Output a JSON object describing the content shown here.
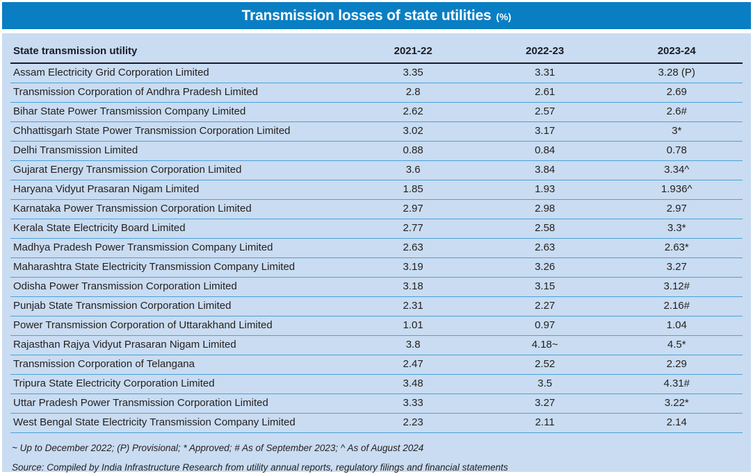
{
  "title": {
    "main": "Transmission losses of state utilities",
    "unit": "(%)"
  },
  "chart_data": {
    "type": "table",
    "title": "Transmission losses of state utilities (%)",
    "columns": [
      "State transmission utility",
      "2021-22",
      "2022-23",
      "2023-24"
    ],
    "rows": [
      [
        "Assam Electricity Grid Corporation Limited",
        "3.35",
        "3.31",
        "3.28 (P)"
      ],
      [
        "Transmission Corporation of Andhra Pradesh Limited",
        "2.8",
        "2.61",
        "2.69"
      ],
      [
        "Bihar State Power Transmission Company Limited",
        "2.62",
        "2.57",
        "2.6#"
      ],
      [
        "Chhattisgarh State Power Transmission Corporation Limited",
        "3.02",
        "3.17",
        "3*"
      ],
      [
        "Delhi Transmission Limited",
        "0.88",
        "0.84",
        "0.78"
      ],
      [
        "Gujarat Energy Transmission Corporation Limited",
        "3.6",
        "3.84",
        "3.34^"
      ],
      [
        "Haryana Vidyut Prasaran Nigam Limited",
        "1.85",
        "1.93",
        "1.936^"
      ],
      [
        "Karnataka Power Transmission Corporation Limited",
        "2.97",
        "2.98",
        "2.97"
      ],
      [
        "Kerala State Electricity Board Limited",
        "2.77",
        "2.58",
        "3.3*"
      ],
      [
        "Madhya Pradesh Power Transmission Company Limited",
        "2.63",
        "2.63",
        "2.63*"
      ],
      [
        "Maharashtra State Electricity Transmission Company Limited",
        "3.19",
        "3.26",
        "3.27"
      ],
      [
        "Odisha Power Transmission Corporation Limited",
        "3.18",
        "3.15",
        "3.12#"
      ],
      [
        "Punjab State Transmission Corporation Limited",
        "2.31",
        "2.27",
        "2.16#"
      ],
      [
        "Power Transmission Corporation of Uttarakhand Limited",
        "1.01",
        "0.97",
        "1.04"
      ],
      [
        "Rajasthan Rajya Vidyut Prasaran Nigam Limited",
        "3.8",
        "4.18~",
        "4.5*"
      ],
      [
        "Transmission Corporation of Telangana",
        "2.47",
        "2.52",
        "2.29"
      ],
      [
        "Tripura State Electricity Corporation Limited",
        "3.48",
        "3.5",
        "4.31#"
      ],
      [
        "Uttar Pradesh Power Transmission Corporation Limited",
        "3.33",
        "3.27",
        "3.22*"
      ],
      [
        "West Bengal State Electricity Transmission Company Limited",
        "2.23",
        "2.11",
        "2.14"
      ]
    ]
  },
  "footnotes": {
    "symbols": "~ Up to December 2022; (P) Provisional; * Approved; # As of September 2023; ^ As of August 2024",
    "source": "Source: Compiled by India Infrastructure Research from utility annual reports, regulatory filings and financial statements"
  },
  "colors": {
    "title_bar": "#0a7ec3",
    "panel_background": "#c9dcf1",
    "row_separator": "#4aa1db",
    "header_rule": "#191928",
    "title_text": "#ffffff",
    "body_text": "#231f20"
  }
}
